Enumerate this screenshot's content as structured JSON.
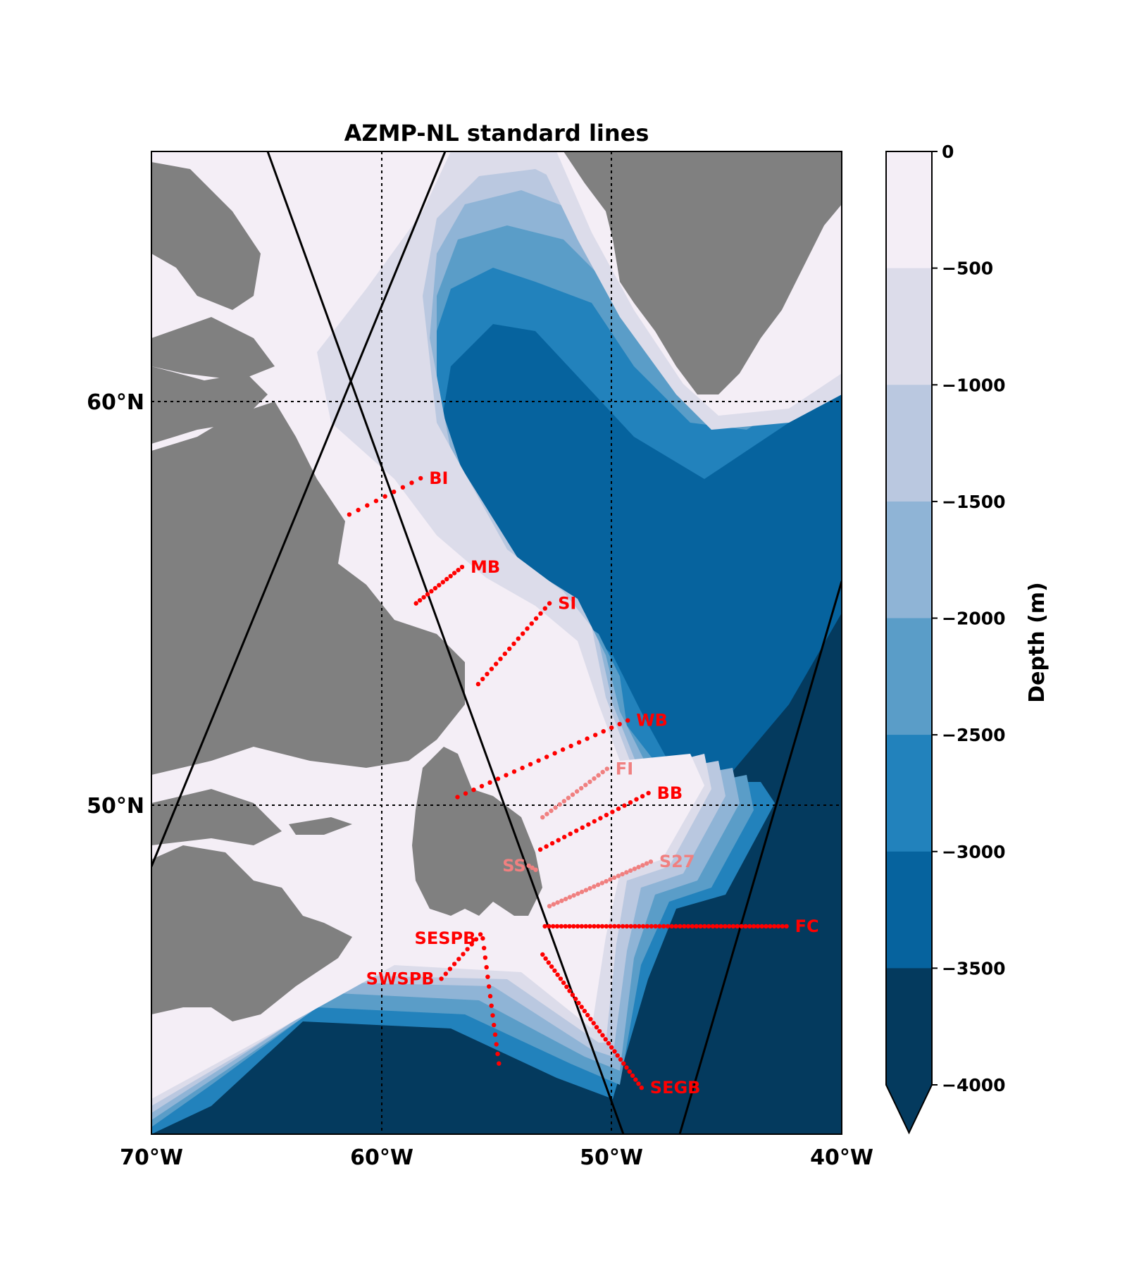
{
  "title": "AZMP-NL standard lines",
  "colors": {
    "land": "#808080",
    "depth": [
      "#f4eef6",
      "#dcdcea",
      "#bac8e0",
      "#8fb4d6",
      "#5a9dc8",
      "#2282bc",
      "#06639e",
      "#043a5e"
    ],
    "line_primary": "#ff0000",
    "line_secondary": "#f08080",
    "swath": "#000000"
  },
  "map": {
    "lon_range": [
      -70,
      -40
    ],
    "lat_range": [
      42.5,
      66.5
    ],
    "lon_ticks": [
      -70,
      -60,
      -50,
      -40
    ],
    "lon_tick_labels": [
      "70°W",
      "60°W",
      "50°W",
      "40°W"
    ],
    "lat_ticks": [
      60,
      50
    ],
    "lat_tick_labels": [
      "60°N",
      "50°N"
    ],
    "grid_lons": [
      -60,
      -50
    ],
    "grid_lats": [
      60,
      50
    ]
  },
  "colorbar": {
    "label": "Depth (m)",
    "levels": [
      0,
      -500,
      -1000,
      -1500,
      -2000,
      -2500,
      -3000,
      -3500,
      -4000
    ],
    "tick_labels": [
      "0",
      "−500",
      "−1000",
      "−1500",
      "−2000",
      "−2500",
      "−3000",
      "−3500",
      "−4000"
    ],
    "extend": "min"
  },
  "lines": [
    {
      "label": "BI",
      "color": "#ff0000",
      "start": [
        -61.4,
        57.2
      ],
      "end": [
        -58.3,
        58.1
      ],
      "n": 9
    },
    {
      "label": "MB",
      "color": "#ff0000",
      "start": [
        -58.5,
        55.0
      ],
      "end": [
        -56.5,
        55.9
      ],
      "n": 13
    },
    {
      "label": "SI",
      "color": "#ff0000",
      "start": [
        -55.8,
        53.0
      ],
      "end": [
        -52.7,
        55.0
      ],
      "n": 17
    },
    {
      "label": "WB",
      "color": "#ff0000",
      "start": [
        -56.7,
        50.2
      ],
      "end": [
        -49.3,
        52.1
      ],
      "n": 22
    },
    {
      "label": "FI",
      "color": "#f08080",
      "start": [
        -53.0,
        49.7
      ],
      "end": [
        -50.2,
        50.9
      ],
      "n": 16
    },
    {
      "label": "BB",
      "color": "#ff0000",
      "start": [
        -53.1,
        48.9
      ],
      "end": [
        -48.4,
        50.3
      ],
      "n": 19
    },
    {
      "label": "SS",
      "color": "#f08080",
      "start": [
        -53.6,
        48.5
      ],
      "end": [
        -53.3,
        48.4
      ],
      "n": 3
    },
    {
      "label": "S27",
      "color": "#f08080",
      "start": [
        -52.7,
        47.5
      ],
      "end": [
        -48.3,
        48.6
      ],
      "n": 26
    },
    {
      "label": "FC",
      "color": "#ff0000",
      "start": [
        -52.9,
        47.0
      ],
      "end": [
        -42.4,
        47.0
      ],
      "n": 60
    },
    {
      "label": "SWSPB",
      "color": "#ff0000",
      "start": [
        -57.4,
        45.7
      ],
      "end": [
        -55.7,
        46.8
      ],
      "n": 10
    },
    {
      "label": "SESPB",
      "color": "#ff0000",
      "start": [
        -55.6,
        46.7
      ],
      "end": [
        -54.9,
        43.6
      ],
      "n": 14
    },
    {
      "label": "SEGB",
      "color": "#ff0000",
      "start": [
        -53.0,
        46.3
      ],
      "end": [
        -48.7,
        43.0
      ],
      "n": 34
    }
  ]
}
